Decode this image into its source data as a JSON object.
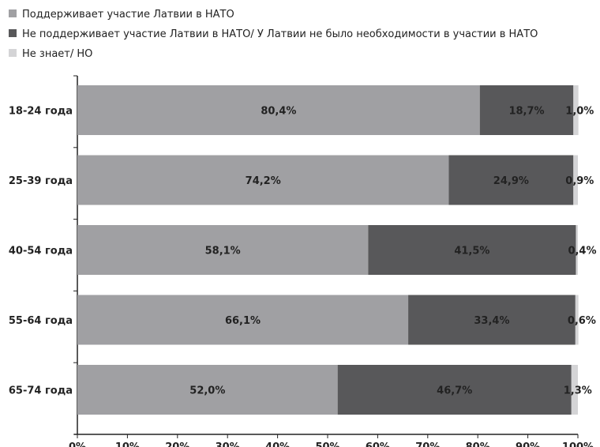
{
  "chart_data": {
    "type": "bar",
    "orientation": "horizontal",
    "stacked": true,
    "categories": [
      "18-24 года",
      "25-39 года",
      "40-54 года",
      "55-64 года",
      "65-74 года"
    ],
    "series": [
      {
        "name": "Поддерживает участие Латвии в НАТО",
        "color": "#a0a0a3",
        "values": [
          80.4,
          74.2,
          58.1,
          66.1,
          52.0
        ],
        "labels": [
          "80,4%",
          "74,2%",
          "58,1%",
          "66,1%",
          "52,0%"
        ]
      },
      {
        "name": "Не поддерживает участие Латвии в НАТО/ У Латвии не было необходимости в участии в НАТО",
        "color": "#58585a",
        "values": [
          18.7,
          24.9,
          41.5,
          33.4,
          46.7
        ],
        "labels": [
          "18,7%",
          "24,9%",
          "41,5%",
          "33,4%",
          "46,7%"
        ]
      },
      {
        "name": "Не знает/ НО",
        "color": "#d4d4d6",
        "values": [
          1.0,
          0.9,
          0.4,
          0.6,
          1.3
        ],
        "labels": [
          "1,0%",
          "0,9%",
          "0,4%",
          "0,6%",
          "1,3%"
        ]
      }
    ],
    "xlim": [
      0,
      100
    ],
    "xticks": [
      "0%",
      "10%",
      "20%",
      "30%",
      "40%",
      "50%",
      "60%",
      "70%",
      "80%",
      "90%",
      "100%"
    ],
    "grid": false,
    "legend_position": "top-left"
  }
}
